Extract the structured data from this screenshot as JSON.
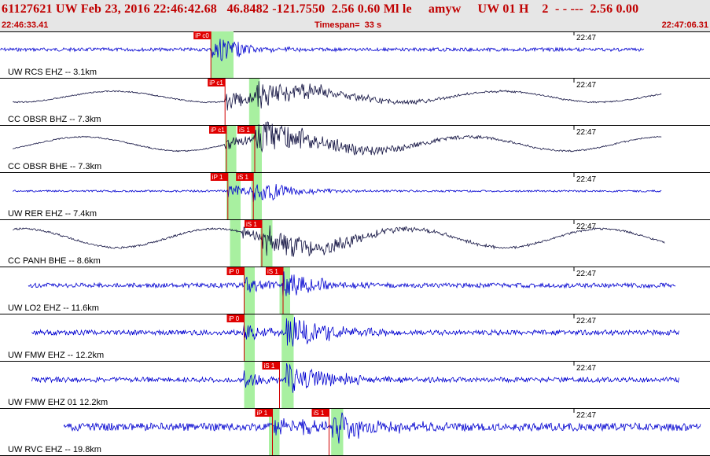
{
  "header": {
    "title": "61127621 UW Feb 23, 2016 22:46:42.68   46.8482 -121.7550  2.56 0.60 Ml le     amyw     UW 01 H    2  - - ---  2.56 0.00",
    "start_time": "22:46:33.41",
    "timespan": "Timespan=  33 s",
    "end_time": "22:47:06.31"
  },
  "minute_tick": "22:47",
  "traces": [
    {
      "label": "UW RCS EHZ -- 3.1km",
      "color": "#0000d0",
      "start": 0.0,
      "end": 0.91,
      "lf": 0,
      "noise": 2.2,
      "picks": [
        {
          "text": "iP c0",
          "t": 0.298
        }
      ],
      "green": [
        [
          0.298,
          0.33
        ]
      ],
      "events": [
        [
          0.3,
          22,
          0.06
        ]
      ]
    },
    {
      "label": "CC OBSR BHZ -- 7.3km",
      "color": "#101040",
      "start": 0.018,
      "end": 0.935,
      "lf": 7,
      "noise": 0.8,
      "picks": [
        {
          "text": "iP c1",
          "t": 0.318
        }
      ],
      "green": [
        [
          0.352,
          0.367
        ]
      ],
      "events": [
        [
          0.318,
          12,
          0.12
        ],
        [
          0.36,
          15,
          0.2
        ]
      ]
    },
    {
      "label": "CC OBSR BHE -- 7.3km",
      "color": "#101040",
      "start": 0.018,
      "end": 0.935,
      "lf": 9,
      "noise": 0.8,
      "picks": [
        {
          "text": "iP c1",
          "t": 0.32
        },
        {
          "text": "iS 1",
          "t": 0.36
        }
      ],
      "green": [
        [
          0.318,
          0.334
        ],
        [
          0.355,
          0.37
        ]
      ],
      "events": [
        [
          0.318,
          8,
          0.1
        ],
        [
          0.36,
          22,
          0.2
        ]
      ]
    },
    {
      "label": "UW RER EHZ -- 7.4km",
      "color": "#0000d0",
      "start": 0.018,
      "end": 0.935,
      "lf": 0,
      "noise": 1.2,
      "picks": [
        {
          "text": "iP 1",
          "t": 0.322
        },
        {
          "text": "iS 1",
          "t": 0.358
        }
      ],
      "green": [
        [
          0.32,
          0.34
        ],
        [
          0.355,
          0.37
        ]
      ],
      "events": [
        [
          0.322,
          10,
          0.05
        ],
        [
          0.358,
          18,
          0.08
        ]
      ]
    },
    {
      "label": "CC PANH BHE -- 8.6km",
      "color": "#101040",
      "start": 0.018,
      "end": 0.94,
      "lf": 12,
      "noise": 1.2,
      "picks": [
        {
          "text": "iS 1",
          "t": 0.37
        }
      ],
      "green": [
        [
          0.325,
          0.34
        ],
        [
          0.368,
          0.385
        ]
      ],
      "events": [
        [
          0.34,
          8,
          0.1
        ],
        [
          0.37,
          20,
          0.18
        ]
      ]
    },
    {
      "label": "UW LO2 EHZ -- 11.6km",
      "color": "#0000d0",
      "start": 0.04,
      "end": 0.955,
      "lf": 0,
      "noise": 3.0,
      "picks": [
        {
          "text": "iP 0",
          "t": 0.345
        },
        {
          "text": "iS 1",
          "t": 0.4
        }
      ],
      "green": [
        [
          0.345,
          0.36
        ],
        [
          0.395,
          0.41
        ]
      ],
      "events": [
        [
          0.345,
          12,
          0.05
        ],
        [
          0.4,
          18,
          0.08
        ]
      ]
    },
    {
      "label": "UW FMW EHZ -- 12.2km",
      "color": "#0000d0",
      "start": 0.045,
      "end": 0.96,
      "lf": 0,
      "noise": 3.2,
      "picks": [
        {
          "text": "iP 0",
          "t": 0.345
        }
      ],
      "green": [
        [
          0.345,
          0.36
        ],
        [
          0.398,
          0.415
        ]
      ],
      "events": [
        [
          0.345,
          12,
          0.05
        ],
        [
          0.405,
          22,
          0.1
        ]
      ]
    },
    {
      "label": "UW FMW EHZ 01 12.2km",
      "color": "#0000d0",
      "start": 0.045,
      "end": 0.96,
      "lf": 0,
      "noise": 3.2,
      "picks": [
        {
          "text": "iS 1",
          "t": 0.395
        }
      ],
      "green": [
        [
          0.345,
          0.36
        ],
        [
          0.398,
          0.415
        ]
      ],
      "events": [
        [
          0.345,
          12,
          0.05
        ],
        [
          0.405,
          22,
          0.1
        ]
      ]
    },
    {
      "label": "UW RVC EHZ -- 19.8km",
      "color": "#0000d0",
      "start": 0.09,
      "end": 0.99,
      "lf": 0,
      "noise": 5.0,
      "picks": [
        {
          "text": "iP 1",
          "t": 0.385
        },
        {
          "text": "iS 1",
          "t": 0.465
        }
      ],
      "green": [
        [
          0.38,
          0.395
        ],
        [
          0.468,
          0.485
        ]
      ],
      "events": [
        [
          0.385,
          14,
          0.08
        ],
        [
          0.47,
          22,
          0.1
        ]
      ]
    }
  ]
}
